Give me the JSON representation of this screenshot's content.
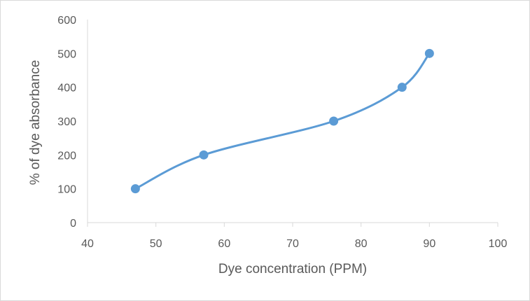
{
  "chart_data": {
    "type": "scatter",
    "title": "",
    "xlabel": "Dye concentration (PPM)",
    "ylabel": "% of dye absorbance",
    "xlim": [
      40,
      100
    ],
    "ylim": [
      0,
      600
    ],
    "x_ticks": [
      40,
      50,
      60,
      70,
      80,
      90,
      100
    ],
    "y_ticks": [
      0,
      100,
      200,
      300,
      400,
      500,
      600
    ],
    "grid": false,
    "smoothed_line": true,
    "series": [
      {
        "color": "#5b9bd5",
        "points": [
          {
            "x": 47,
            "y": 100
          },
          {
            "x": 57,
            "y": 200
          },
          {
            "x": 76,
            "y": 300
          },
          {
            "x": 86,
            "y": 400
          },
          {
            "x": 90,
            "y": 500
          }
        ]
      }
    ]
  }
}
